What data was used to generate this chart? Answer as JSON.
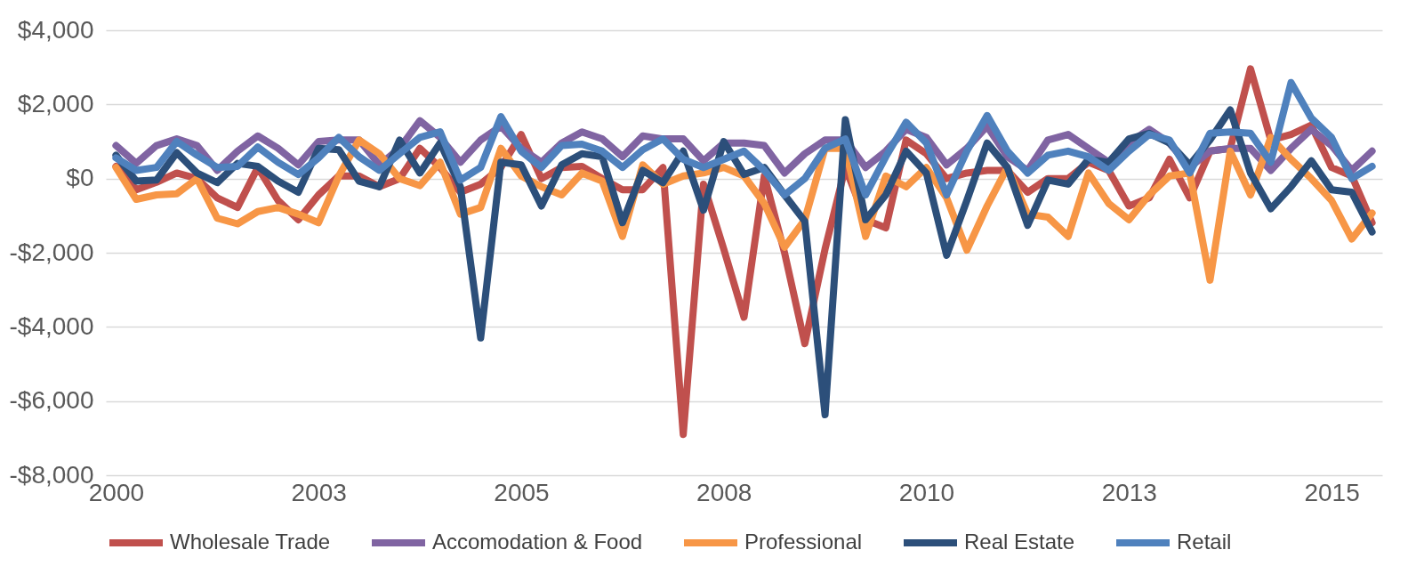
{
  "chart_data": {
    "type": "line",
    "categories": [
      "2000",
      null,
      null,
      null,
      null,
      null,
      null,
      null,
      null,
      null,
      "2003",
      null,
      null,
      null,
      null,
      null,
      null,
      null,
      null,
      null,
      "2005",
      null,
      null,
      null,
      null,
      null,
      null,
      null,
      null,
      null,
      "2008",
      null,
      null,
      null,
      null,
      null,
      null,
      null,
      null,
      null,
      "2010",
      null,
      null,
      null,
      null,
      null,
      null,
      null,
      null,
      null,
      "2013",
      null,
      null,
      null,
      null,
      null,
      null,
      null,
      null,
      null,
      "2015",
      null,
      null
    ],
    "series": [
      {
        "name": "Wholesale Trade",
        "color": "#c0504d",
        "values": [
          330,
          -300,
          -100,
          150,
          0,
          -520,
          -780,
          300,
          -590,
          -1110,
          -440,
          70,
          70,
          -220,
          0,
          815,
          300,
          -370,
          -150,
          300,
          1190,
          0,
          300,
          330,
          0,
          -300,
          -300,
          300,
          -6900,
          -150,
          -1900,
          -3740,
          70,
          -2000,
          -4450,
          -1900,
          300,
          -1110,
          -1330,
          1040,
          670,
          0,
          150,
          220,
          220,
          -370,
          0,
          0,
          440,
          220,
          -740,
          -520,
          520,
          -520,
          740,
          815,
          2960,
          1040,
          1190,
          1440,
          300,
          70,
          -1190
        ]
      },
      {
        "name": "Accomodation & Food",
        "color": "#8064a2",
        "values": [
          890,
          410,
          890,
          1070,
          890,
          220,
          740,
          1150,
          815,
          370,
          1000,
          1040,
          1040,
          370,
          815,
          1560,
          1110,
          440,
          1040,
          1410,
          815,
          440,
          960,
          1260,
          1070,
          590,
          1150,
          1070,
          1070,
          480,
          960,
          960,
          890,
          150,
          670,
          1040,
          1040,
          300,
          740,
          1330,
          1110,
          370,
          815,
          1410,
          590,
          220,
          1040,
          1190,
          815,
          440,
          960,
          1330,
          960,
          300,
          740,
          815,
          815,
          220,
          815,
          1330,
          890,
          220,
          740
        ]
      },
      {
        "name": "Professional",
        "color": "#f79646",
        "values": [
          300,
          -560,
          -440,
          -410,
          0,
          -1070,
          -1220,
          -890,
          -780,
          -960,
          -1190,
          70,
          1040,
          670,
          0,
          -190,
          440,
          -960,
          -780,
          815,
          70,
          -220,
          -440,
          150,
          -70,
          -1560,
          370,
          -150,
          70,
          150,
          300,
          70,
          -670,
          -1850,
          -1110,
          815,
          815,
          -1560,
          70,
          -220,
          300,
          -520,
          -1930,
          -740,
          300,
          -960,
          -1040,
          -1560,
          150,
          -670,
          -1110,
          -440,
          70,
          150,
          -2740,
          740,
          -440,
          1110,
          520,
          0,
          -590,
          -1630,
          -930
        ]
      },
      {
        "name": "Real Estate",
        "color": "#2c4f7a",
        "values": [
          630,
          -70,
          -40,
          700,
          150,
          -110,
          410,
          330,
          -70,
          -370,
          815,
          780,
          -70,
          -220,
          1040,
          150,
          960,
          -220,
          -4300,
          440,
          370,
          -740,
          370,
          670,
          590,
          -1190,
          220,
          -110,
          740,
          -850,
          1000,
          110,
          300,
          -440,
          -1150,
          -6370,
          1590,
          -1110,
          -440,
          740,
          150,
          -2070,
          -590,
          960,
          300,
          -1260,
          -40,
          -150,
          520,
          440,
          1070,
          1220,
          960,
          370,
          1040,
          1850,
          150,
          -815,
          -220,
          480,
          -300,
          -370,
          -1440
        ]
      },
      {
        "name": "Retail",
        "color": "#4f81bd",
        "values": [
          560,
          220,
          300,
          1000,
          630,
          300,
          330,
          850,
          440,
          110,
          560,
          1110,
          590,
          220,
          670,
          1110,
          1260,
          -40,
          300,
          1670,
          740,
          300,
          890,
          930,
          740,
          300,
          780,
          1070,
          520,
          300,
          520,
          740,
          220,
          -440,
          0,
          815,
          1070,
          -440,
          590,
          1520,
          960,
          -440,
          740,
          1700,
          740,
          150,
          630,
          740,
          590,
          220,
          740,
          1190,
          1040,
          150,
          1220,
          1260,
          1220,
          440,
          2590,
          1630,
          1110,
          0,
          330
        ]
      }
    ],
    "ylim": [
      -8000,
      4000
    ],
    "yticks": [
      {
        "value": -8000,
        "label": "-$8,000"
      },
      {
        "value": -6000,
        "label": "-$6,000"
      },
      {
        "value": -4000,
        "label": "-$4,000"
      },
      {
        "value": -2000,
        "label": "-$2,000"
      },
      {
        "value": 0,
        "label": "$0"
      },
      {
        "value": 2000,
        "label": "$2,000"
      },
      {
        "value": 4000,
        "label": "$4,000"
      }
    ],
    "grid": "y",
    "legend": "bottom",
    "line_style": "solid",
    "marker": "none"
  }
}
